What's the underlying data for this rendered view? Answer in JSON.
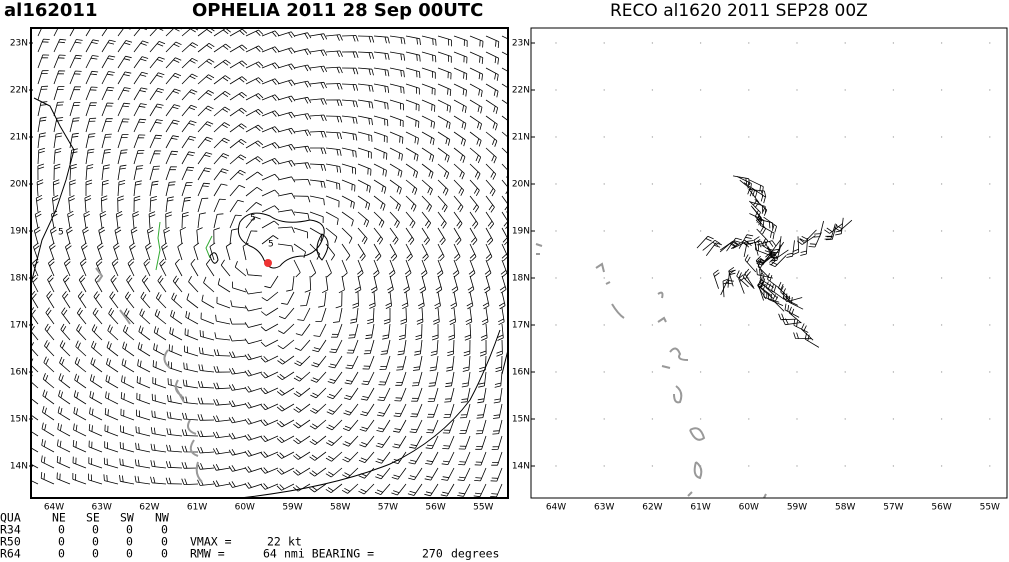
{
  "header": {
    "storm_id": "al162011",
    "left_title": "OPHELIA 2011 28 Sep 00UTC",
    "right_title": "RECO al1620 2011 SEP28 00Z"
  },
  "panels": [
    {
      "lat_labels": [
        "23N",
        "22N",
        "21N",
        "20N",
        "19N",
        "18N",
        "17N",
        "16N",
        "15N",
        "14N"
      ],
      "lon_labels": [
        "64W",
        "63W",
        "62W",
        "61W",
        "60W",
        "59W",
        "58W",
        "57W",
        "56W",
        "55W"
      ],
      "contour_labels": [
        "5",
        "5",
        "5"
      ]
    },
    {
      "lat_labels": [
        "23N",
        "22N",
        "21N",
        "20N",
        "19N",
        "18N",
        "17N",
        "16N",
        "15N",
        "14N"
      ],
      "lon_labels": [
        "64W",
        "63W",
        "62W",
        "61W",
        "60W",
        "59W",
        "58W",
        "57W",
        "56W",
        "55W"
      ]
    }
  ],
  "table": {
    "header": [
      "QUA",
      "NE",
      "SE",
      "SW",
      "NW"
    ],
    "rows": [
      [
        "R34",
        0,
        0,
        0,
        0
      ],
      [
        "R50",
        0,
        0,
        0,
        0
      ],
      [
        "R64",
        0,
        0,
        0,
        0
      ]
    ]
  },
  "vmax": {
    "label": "VMAX =",
    "value": 22,
    "unit": "kt"
  },
  "rmw": {
    "label": "RMW =",
    "value": 64,
    "unit": "nmi BEARING =",
    "bearing": 270,
    "bearing_unit": "degrees"
  }
}
